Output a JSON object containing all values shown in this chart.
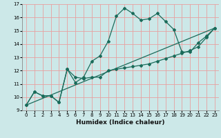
{
  "xlabel": "Humidex (Indice chaleur)",
  "background_color": "#cce8e8",
  "grid_color": "#e8a0a0",
  "line_color": "#1a6b5a",
  "xlim": [
    -0.5,
    23.5
  ],
  "ylim": [
    9,
    17
  ],
  "x_ticks": [
    0,
    1,
    2,
    3,
    4,
    5,
    6,
    7,
    8,
    9,
    10,
    11,
    12,
    13,
    14,
    15,
    16,
    17,
    18,
    19,
    20,
    21,
    22,
    23
  ],
  "y_ticks": [
    9,
    10,
    11,
    12,
    13,
    14,
    15,
    16,
    17
  ],
  "line1_x": [
    0,
    1,
    2,
    3,
    4,
    5,
    6,
    7,
    8,
    9,
    10,
    11,
    12,
    13,
    14,
    15,
    16,
    17,
    18,
    19,
    20,
    21,
    22,
    23
  ],
  "line1_y": [
    9.4,
    10.4,
    10.1,
    10.1,
    9.6,
    12.1,
    11.1,
    11.5,
    12.7,
    13.1,
    14.2,
    16.1,
    16.7,
    16.3,
    15.8,
    15.9,
    16.3,
    15.7,
    15.1,
    13.4,
    13.4,
    14.1,
    14.6,
    15.2
  ],
  "line2_x": [
    0,
    1,
    2,
    3,
    4,
    5,
    6,
    7,
    8,
    9,
    10,
    11,
    12,
    13,
    14,
    15,
    16,
    17,
    18,
    19,
    20,
    21,
    22,
    23
  ],
  "line2_y": [
    9.4,
    10.4,
    10.1,
    10.1,
    9.6,
    12.1,
    11.5,
    11.4,
    11.5,
    11.5,
    12.0,
    12.1,
    12.2,
    12.3,
    12.4,
    12.5,
    12.7,
    12.9,
    13.1,
    13.3,
    13.5,
    13.8,
    14.5,
    15.2
  ],
  "line3_x": [
    0,
    23
  ],
  "line3_y": [
    9.4,
    15.2
  ],
  "tick_fontsize": 5.0,
  "xlabel_fontsize": 6.5
}
